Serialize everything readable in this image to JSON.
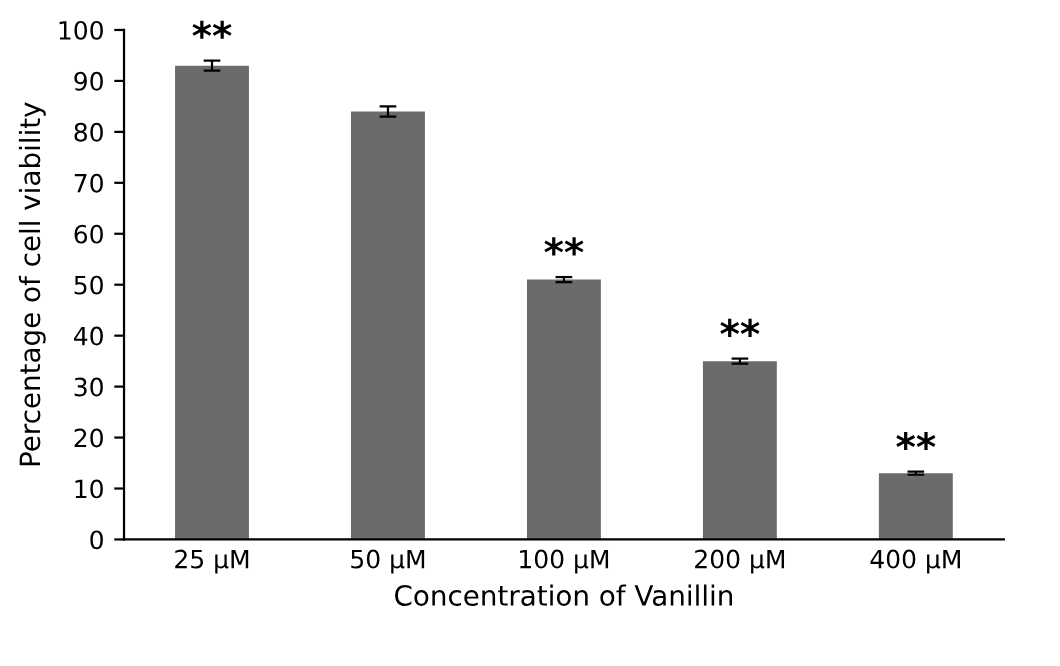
{
  "chart_data": {
    "type": "bar",
    "xlabel": "Concentration of Vanillin",
    "ylabel": "Percentage of cell viability",
    "categories": [
      "25 µM",
      "50 µM",
      "100 µM",
      "200 µM",
      "400 µM"
    ],
    "values": [
      93,
      84,
      51,
      35,
      13
    ],
    "errors": [
      1,
      1,
      0.5,
      0.5,
      0.3
    ],
    "color": "#6b6b6b",
    "ylim": [
      0,
      100
    ],
    "yticks": [
      0,
      10,
      20,
      30,
      40,
      50,
      60,
      70,
      80,
      90,
      100
    ],
    "grid": false,
    "annotations": [
      {
        "text": "**",
        "x": "25 µM",
        "y": 94
      },
      {
        "text": "**",
        "x": "100 µM",
        "y": 51.5
      },
      {
        "text": "**",
        "x": "200 µM",
        "y": 35.5
      },
      {
        "text": "**",
        "x": "400 µM",
        "y": 13.3
      }
    ]
  }
}
